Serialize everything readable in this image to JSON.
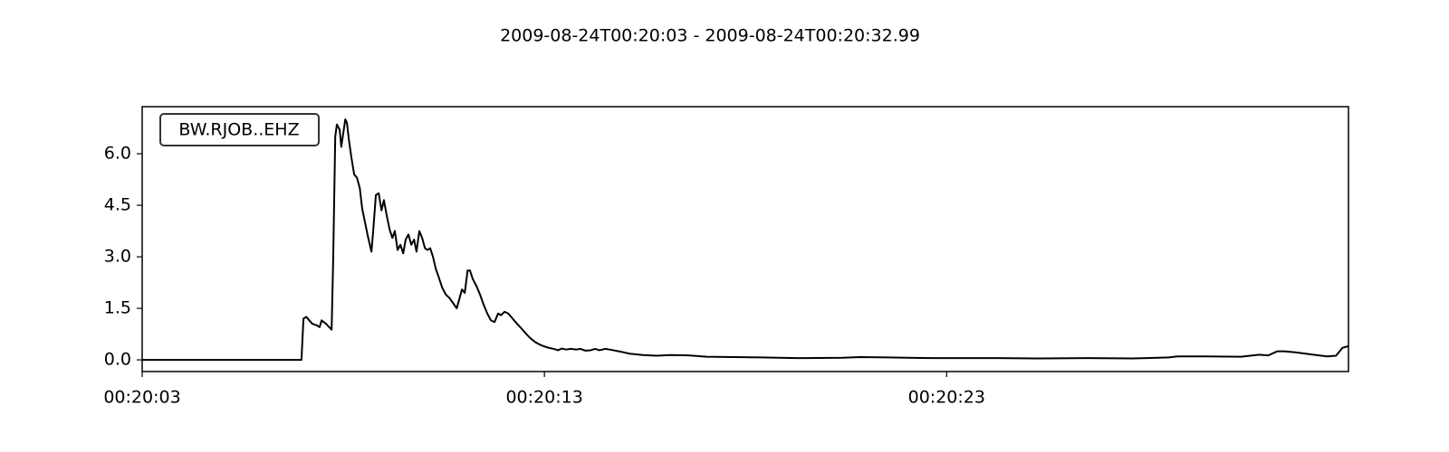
{
  "chart_data": {
    "type": "line",
    "title": "2009-08-24T00:20:03  -  2009-08-24T00:20:32.99",
    "legend_label": "BW.RJOB..EHZ",
    "color": "#000000",
    "x": [
      0,
      3.96,
      4.01,
      4.08,
      4.23,
      4.35,
      4.41,
      4.46,
      4.57,
      4.71,
      4.75,
      4.8,
      4.84,
      4.91,
      4.95,
      5.0,
      5.05,
      5.09,
      5.14,
      5.2,
      5.27,
      5.34,
      5.41,
      5.47,
      5.54,
      5.61,
      5.7,
      5.74,
      5.81,
      5.88,
      5.95,
      6.01,
      6.08,
      6.15,
      6.22,
      6.28,
      6.35,
      6.42,
      6.49,
      6.55,
      6.62,
      6.69,
      6.76,
      6.82,
      6.89,
      6.96,
      7.03,
      7.09,
      7.16,
      7.23,
      7.3,
      7.36,
      7.46,
      7.55,
      7.64,
      7.73,
      7.82,
      7.88,
      7.95,
      8.02,
      8.09,
      8.15,
      8.22,
      8.31,
      8.4,
      8.49,
      8.58,
      8.67,
      8.76,
      8.85,
      8.92,
      9.01,
      9.1,
      9.21,
      9.32,
      9.44,
      9.55,
      9.66,
      9.77,
      9.89,
      10.0,
      10.11,
      10.23,
      10.34,
      10.43,
      10.54,
      10.65,
      10.79,
      10.9,
      11.01,
      11.15,
      11.26,
      11.37,
      11.51,
      11.67,
      11.89,
      12.12,
      12.45,
      12.79,
      13.13,
      13.58,
      14.03,
      14.71,
      15.38,
      16.28,
      17.41,
      17.86,
      18.54,
      19.66,
      21.24,
      22.36,
      23.49,
      24.62,
      25.52,
      25.74,
      26.42,
      27.32,
      27.77,
      28.0,
      28.22,
      28.4,
      28.67,
      29.12,
      29.46,
      29.68,
      29.84,
      29.99
    ],
    "values": [
      0,
      0,
      1.2,
      1.25,
      1.05,
      1.0,
      0.95,
      1.15,
      1.05,
      0.88,
      3.0,
      6.5,
      6.85,
      6.7,
      6.2,
      6.6,
      7.0,
      6.9,
      6.4,
      5.9,
      5.4,
      5.3,
      5.0,
      4.4,
      4.0,
      3.6,
      3.15,
      3.7,
      4.8,
      4.85,
      4.35,
      4.65,
      4.2,
      3.8,
      3.55,
      3.75,
      3.2,
      3.35,
      3.1,
      3.5,
      3.65,
      3.35,
      3.5,
      3.15,
      3.75,
      3.55,
      3.25,
      3.2,
      3.25,
      3.0,
      2.65,
      2.45,
      2.1,
      1.9,
      1.8,
      1.65,
      1.5,
      1.75,
      2.05,
      1.95,
      2.6,
      2.6,
      2.35,
      2.15,
      1.9,
      1.6,
      1.35,
      1.15,
      1.1,
      1.35,
      1.3,
      1.4,
      1.35,
      1.2,
      1.05,
      0.9,
      0.75,
      0.62,
      0.52,
      0.44,
      0.39,
      0.35,
      0.32,
      0.28,
      0.33,
      0.3,
      0.32,
      0.3,
      0.32,
      0.27,
      0.28,
      0.32,
      0.28,
      0.32,
      0.29,
      0.24,
      0.18,
      0.14,
      0.12,
      0.14,
      0.13,
      0.09,
      0.08,
      0.07,
      0.05,
      0.06,
      0.08,
      0.07,
      0.05,
      0.05,
      0.04,
      0.05,
      0.04,
      0.07,
      0.1,
      0.1,
      0.09,
      0.15,
      0.13,
      0.25,
      0.25,
      0.22,
      0.15,
      0.1,
      0.12,
      0.35,
      0.4
    ],
    "xlim": [
      0,
      29.99
    ],
    "xticks": [
      {
        "value": 0,
        "label": "00:20:03"
      },
      {
        "value": 10,
        "label": "00:20:13"
      },
      {
        "value": 20,
        "label": "00:20:23"
      }
    ],
    "ylim": [
      -0.34,
      7.37
    ],
    "yticks": [
      {
        "value": 0,
        "label": "0.0"
      },
      {
        "value": 1.5,
        "label": "1.5"
      },
      {
        "value": 3,
        "label": "3.0"
      },
      {
        "value": 4.5,
        "label": "4.5"
      },
      {
        "value": 6,
        "label": "6.0"
      }
    ]
  }
}
